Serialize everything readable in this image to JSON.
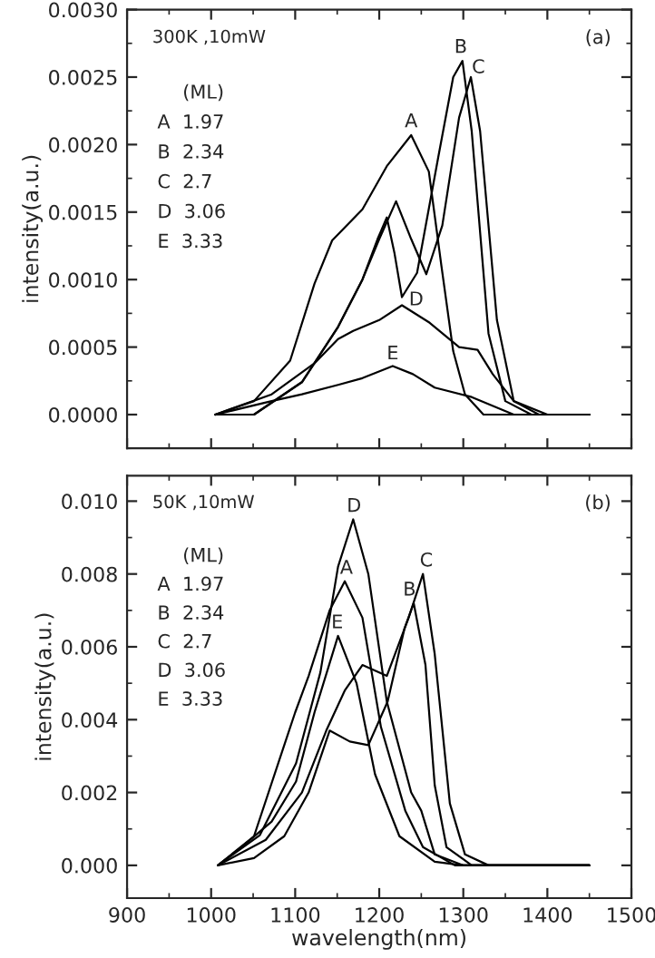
{
  "chart_data": [
    {
      "type": "line",
      "ylabel": "intensity(a.u.)",
      "xlim": [
        900,
        1500
      ],
      "xticks": [
        900,
        1000,
        1100,
        1200,
        1300,
        1400,
        1500
      ],
      "ylim": [
        -0.00025,
        0.003
      ],
      "yticks": [
        {
          "value": 0,
          "label": "0.0000"
        },
        {
          "value": 0.0005,
          "label": "0.0005"
        },
        {
          "value": 0.001,
          "label": "0.0010"
        },
        {
          "value": 0.0015,
          "label": "0.0015"
        },
        {
          "value": 0.002,
          "label": "0.0020"
        },
        {
          "value": 0.0025,
          "label": "0.0025"
        },
        {
          "value": 0.003,
          "label": "0.0030"
        }
      ],
      "tick_labels": "y",
      "grid": false,
      "annotations": [
        "300K ,10mW",
        "(a)",
        "(ML)",
        "A  1.97",
        "B  2.34",
        "C  2.7",
        "D  3.06",
        "E  3.33",
        {
          "text": "A",
          "x": 1238,
          "y": 0.0021
        },
        {
          "text": "B",
          "x": 1297,
          "y": 0.00265
        },
        {
          "text": "C",
          "x": 1318,
          "y": 0.0025
        },
        {
          "text": "D",
          "x": 1244,
          "y": 0.00078
        },
        {
          "text": "E",
          "x": 1216,
          "y": 0.00038
        }
      ],
      "series": [
        {
          "color": "#000000",
          "x": [
            1005,
            1051,
            1094,
            1123,
            1144,
            1180,
            1209,
            1238,
            1259,
            1274,
            1288,
            1302,
            1324,
            1381,
            1450
          ],
          "values": [
            0,
            0.0001,
            0.0004,
            0.00097,
            0.00129,
            0.00152,
            0.00184,
            0.00207,
            0.0018,
            0.0011,
            0.00047,
            0.00015,
            0,
            0,
            0
          ]
        },
        {
          "color": "#000000",
          "x": [
            1005,
            1051,
            1108,
            1151,
            1180,
            1198,
            1209,
            1218,
            1227,
            1245,
            1270,
            1288,
            1299,
            1310,
            1330,
            1350,
            1381,
            1450
          ],
          "values": [
            0,
            0,
            0.00024,
            0.00065,
            0.001,
            0.0013,
            0.00146,
            0.0012,
            0.00087,
            0.00105,
            0.0019,
            0.0025,
            0.00262,
            0.0021,
            0.0006,
            0.0001,
            0,
            0
          ]
        },
        {
          "color": "#000000",
          "x": [
            1005,
            1051,
            1108,
            1151,
            1180,
            1200,
            1220,
            1238,
            1256,
            1275,
            1295,
            1309,
            1320,
            1340,
            1360,
            1390,
            1450
          ],
          "values": [
            0,
            0,
            0.00024,
            0.00065,
            0.001,
            0.0013,
            0.00158,
            0.0013,
            0.00104,
            0.0014,
            0.0022,
            0.0025,
            0.0021,
            0.0007,
            0.0001,
            0,
            0
          ]
        },
        {
          "color": "#000000",
          "x": [
            1005,
            1072,
            1123,
            1151,
            1169,
            1200,
            1227,
            1260,
            1295,
            1317,
            1335,
            1360,
            1400,
            1450
          ],
          "values": [
            0,
            0.00015,
            0.00038,
            0.00056,
            0.00062,
            0.0007,
            0.00081,
            0.00068,
            0.0005,
            0.00048,
            0.0003,
            0.0001,
            0,
            0
          ]
        },
        {
          "color": "#000000",
          "x": [
            1005,
            1072,
            1108,
            1151,
            1180,
            1216,
            1240,
            1266,
            1310,
            1360,
            1400,
            1450
          ],
          "values": [
            0,
            0.0001,
            0.00015,
            0.00022,
            0.00027,
            0.00036,
            0.0003,
            0.0002,
            0.00013,
            0,
            0,
            0
          ]
        }
      ]
    },
    {
      "type": "line",
      "xlabel": "wavelength(nm)",
      "ylabel": "intensity(a.u.)",
      "xlim": [
        900,
        1500
      ],
      "xticks": [
        900,
        1000,
        1100,
        1200,
        1300,
        1400,
        1500
      ],
      "ylim": [
        -0.0009,
        0.0107
      ],
      "yticks": [
        {
          "value": 0,
          "label": "0.000"
        },
        {
          "value": 0.002,
          "label": "0.002"
        },
        {
          "value": 0.004,
          "label": "0.004"
        },
        {
          "value": 0.006,
          "label": "0.006"
        },
        {
          "value": 0.008,
          "label": "0.008"
        },
        {
          "value": 0.01,
          "label": "0.010"
        }
      ],
      "grid": false,
      "annotations": [
        "50K ,10mW",
        "(b)",
        "(ML)",
        "A  1.97",
        "B  2.34",
        "C  2.7",
        "D  3.06",
        "E  3.33",
        {
          "text": "D",
          "x": 1170,
          "y": 0.0096
        },
        {
          "text": "A",
          "x": 1161,
          "y": 0.0079
        },
        {
          "text": "E",
          "x": 1150,
          "y": 0.0064
        },
        {
          "text": "B",
          "x": 1236,
          "y": 0.0073
        },
        {
          "text": "C",
          "x": 1256,
          "y": 0.0081
        }
      ],
      "series": [
        {
          "color": "#000000",
          "x": [
            1008,
            1051,
            1087,
            1100,
            1116,
            1141,
            1159,
            1180,
            1202,
            1231,
            1252,
            1290,
            1450
          ],
          "values": [
            0,
            0.0008,
            0.0033,
            0.0042,
            0.0052,
            0.007,
            0.0078,
            0.0068,
            0.0038,
            0.0015,
            0.0005,
            0,
            0
          ]
        },
        {
          "color": "#000000",
          "x": [
            1008,
            1051,
            1087,
            1116,
            1141,
            1165,
            1187,
            1210,
            1230,
            1241,
            1255,
            1266,
            1280,
            1310,
            1450
          ],
          "values": [
            0,
            0.0002,
            0.0008,
            0.002,
            0.0037,
            0.0034,
            0.0033,
            0.0045,
            0.0065,
            0.0072,
            0.0055,
            0.0022,
            0.0005,
            0,
            0
          ]
        },
        {
          "color": "#000000",
          "x": [
            1008,
            1065,
            1108,
            1137,
            1159,
            1180,
            1209,
            1235,
            1252,
            1266,
            1284,
            1302,
            1330,
            1450
          ],
          "values": [
            0,
            0.0007,
            0.002,
            0.0037,
            0.0048,
            0.0055,
            0.0052,
            0.0068,
            0.008,
            0.0058,
            0.0017,
            0.0003,
            0,
            0
          ]
        },
        {
          "color": "#000000",
          "x": [
            1008,
            1058,
            1101,
            1130,
            1151,
            1169,
            1187,
            1209,
            1238,
            1250,
            1266,
            1300,
            1450
          ],
          "values": [
            0,
            0.00083,
            0.0028,
            0.0053,
            0.0082,
            0.0095,
            0.008,
            0.0045,
            0.002,
            0.0015,
            0.0003,
            0,
            0
          ]
        },
        {
          "color": "#000000",
          "x": [
            1008,
            1036,
            1072,
            1101,
            1123,
            1151,
            1173,
            1195,
            1224,
            1266,
            1300,
            1450
          ],
          "values": [
            0,
            0.0005,
            0.0012,
            0.0023,
            0.0042,
            0.0063,
            0.005,
            0.0025,
            0.0008,
            0.0001,
            0,
            0
          ]
        }
      ]
    }
  ]
}
